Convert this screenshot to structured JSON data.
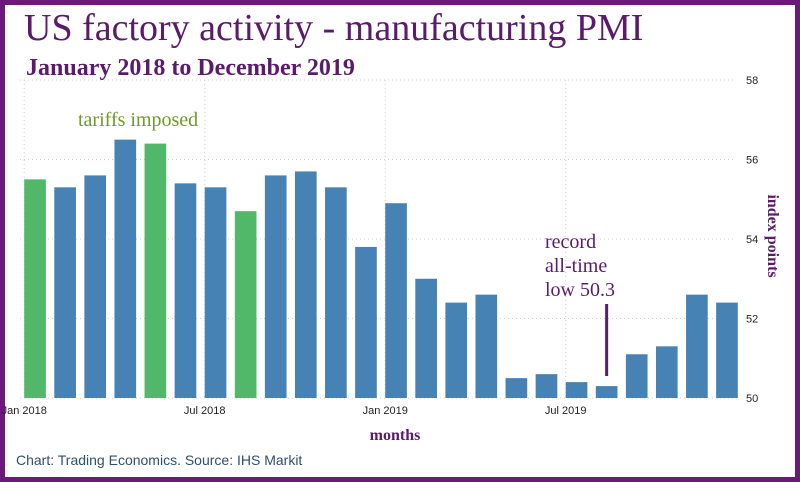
{
  "title": "US factory activity - manufacturing PMI",
  "subtitle": "January 2018 to December 2019",
  "source": "Chart: Trading Economics. Source: IHS Markit",
  "colors": {
    "frame": "#6b1a7a",
    "bar_default": "#4682b4",
    "bar_highlight": "#52b869",
    "annotation_green": "#6e9a2a",
    "annotation_purple": "#5b1a6b"
  },
  "chart_data": {
    "type": "bar",
    "title": "US factory activity - manufacturing PMI",
    "subtitle": "January 2018 to December 2019",
    "xlabel": "months",
    "ylabel": "index points",
    "ylim": [
      50,
      58
    ],
    "yticks": [
      "50",
      "52",
      "54",
      "56",
      "58"
    ],
    "x_tick_labels": [
      "Jan 2018",
      "Jul 2018",
      "Jan 2019",
      "Jul 2019"
    ],
    "x_tick_positions": [
      0,
      6,
      12,
      18
    ],
    "categories": [
      "2018-01",
      "2018-02",
      "2018-03",
      "2018-04",
      "2018-05",
      "2018-06",
      "2018-07",
      "2018-08",
      "2018-09",
      "2018-10",
      "2018-11",
      "2018-12",
      "2019-01",
      "2019-02",
      "2019-03",
      "2019-04",
      "2019-05",
      "2019-06",
      "2019-07",
      "2019-08",
      "2019-09",
      "2019-10",
      "2019-11",
      "2019-12"
    ],
    "values": [
      55.5,
      55.3,
      55.6,
      56.5,
      56.4,
      55.4,
      55.3,
      54.7,
      55.6,
      55.7,
      55.3,
      53.8,
      54.9,
      53.0,
      52.4,
      52.6,
      50.5,
      50.6,
      50.4,
      50.3,
      51.1,
      51.3,
      52.6,
      52.4
    ],
    "highlighted": [
      0,
      4,
      7
    ],
    "grid": true,
    "annotations": [
      {
        "text": "tariffs imposed"
      },
      {
        "lines": [
          "record",
          "all-time",
          "low 50.3"
        ],
        "index": 19
      }
    ]
  }
}
